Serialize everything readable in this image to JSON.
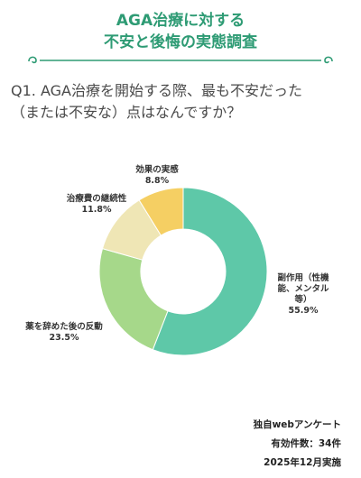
{
  "header": {
    "title_line1": "AGA治療に対する",
    "title_line2": "不安と後悔の実態調査"
  },
  "question": {
    "line1": "Q1. AGA治療を開始する際、最も不安だった",
    "line2": "（または不安な）点はなんですか？"
  },
  "colors": {
    "accent": "#2e9b74",
    "slice_colors": [
      "#5ec8a8",
      "#a6d88a",
      "#efe6b5",
      "#f5cf63"
    ]
  },
  "chart_data": {
    "type": "pie",
    "donut": true,
    "categories": [
      [
        "副作用（性機",
        "能、メンタル",
        "等）"
      ],
      [
        "薬を辞めた後の反動"
      ],
      [
        "治療費の継続性"
      ],
      [
        "効果の実感"
      ]
    ],
    "values": [
      55.9,
      23.5,
      11.8,
      8.8
    ],
    "value_labels": [
      "55.9%",
      "23.5%",
      "11.8%",
      "8.8%"
    ]
  },
  "footer": {
    "line1": "独自webアンケート",
    "line2": "有効件数：34件",
    "line3": "2025年12月実施"
  }
}
